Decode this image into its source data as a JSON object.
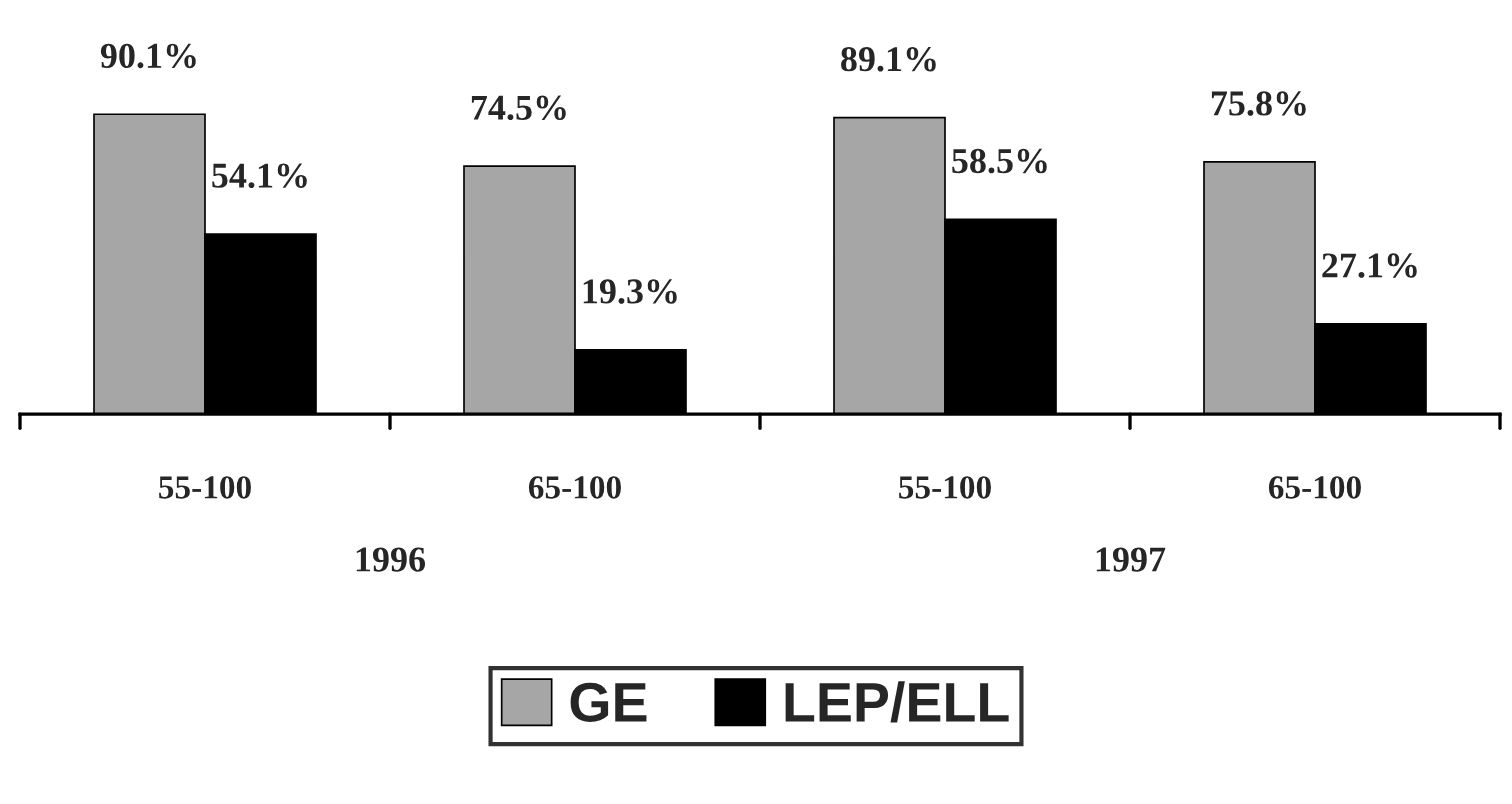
{
  "chart_data": {
    "type": "bar",
    "categories": [
      "55-100",
      "65-100",
      "55-100",
      "65-100"
    ],
    "series": [
      {
        "name": "GE",
        "color": "#a6a6a6",
        "values": [
          90.1,
          74.5,
          89.1,
          75.8
        ],
        "value_labels": [
          "90.1%",
          "74.5%",
          "89.1%",
          "75.8%"
        ]
      },
      {
        "name": "LEP/ELL",
        "color": "#000000",
        "values": [
          54.1,
          19.3,
          58.5,
          27.1
        ],
        "value_labels": [
          "54.1%",
          "19.3%",
          "58.5%",
          "27.1%"
        ]
      }
    ],
    "annotations": [
      "1996",
      "1997"
    ],
    "legend": "bottom",
    "grid": false
  }
}
